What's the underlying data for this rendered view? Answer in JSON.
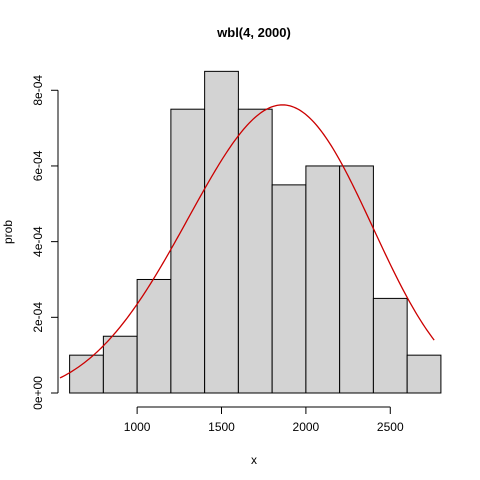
{
  "chart_data": {
    "type": "histogram",
    "title": "wbl(4, 2000)",
    "xlabel": "x",
    "ylabel": "prob",
    "xlim": [
      543,
      2842
    ],
    "ylim": [
      0,
      0.00088
    ],
    "bin_edges": [
      600,
      800,
      1000,
      1200,
      1400,
      1600,
      1800,
      2000,
      2200,
      2400,
      2600,
      2800
    ],
    "densities": [
      0.0001,
      0.00015,
      0.0003,
      0.00075,
      0.00085,
      0.00075,
      0.00055,
      0.0006,
      0.0006,
      0.00025,
      0.0001
    ],
    "x_ticks": [
      1000,
      1500,
      2000,
      2500
    ],
    "x_tick_labels": [
      "1000",
      "1500",
      "2000",
      "2500"
    ],
    "y_ticks": [
      0,
      0.0002,
      0.0004,
      0.0006,
      0.0008
    ],
    "y_tick_labels": [
      "0e+00",
      "2e-04",
      "4e-04",
      "6e-04",
      "8e-04"
    ],
    "curve": {
      "name": "Weibull density",
      "shape": 4,
      "scale": 2000,
      "x_range": [
        543,
        2760
      ],
      "color": "#cc0000"
    },
    "bar_fill": "#d3d3d3",
    "bar_stroke": "#000000"
  }
}
